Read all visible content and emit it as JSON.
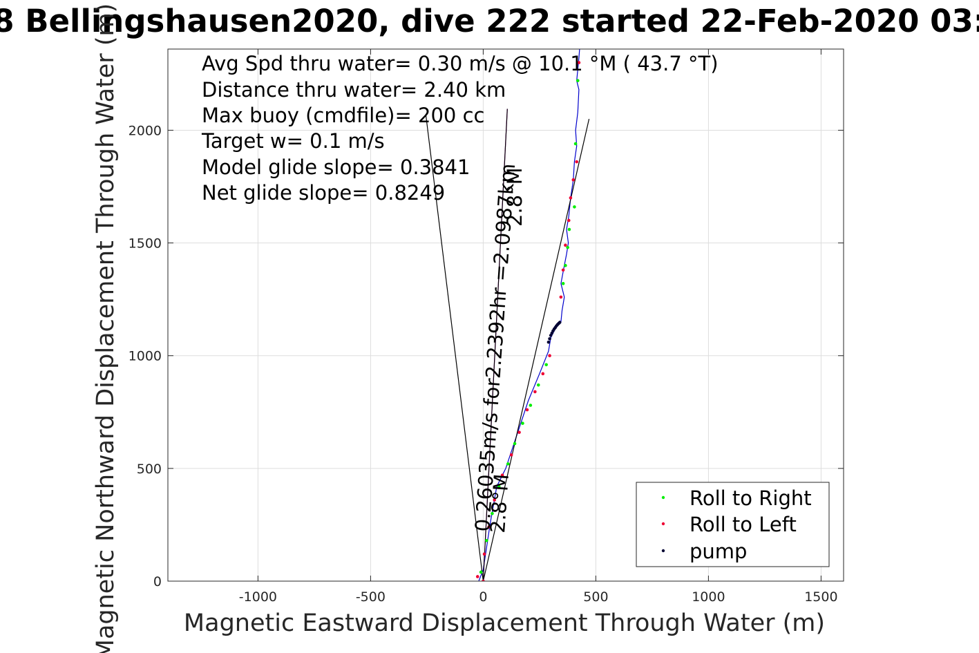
{
  "chart_data": {
    "type": "scatter",
    "title": "8 Bellingshausen2020, dive 222 started 22-Feb-2020 03:",
    "xlabel": "Magnetic Eastward Displacement Through Water (m)",
    "ylabel": "Magnetic Northward Displacement Through Water (m)",
    "xlim": [
      -1400,
      1600
    ],
    "ylim": [
      0,
      2360
    ],
    "xticks": [
      -1000,
      -500,
      0,
      500,
      1000,
      1500
    ],
    "yticks": [
      0,
      500,
      1000,
      1500,
      2000
    ],
    "grid": true,
    "legend_position": "bottom-right",
    "annotations": [
      "Avg Spd thru water=  0.30 m/s @  10.1 °M ( 43.7 °T)",
      "Distance thru water=  2.40 km",
      "Max buoy (cmdfile)= 200 cc",
      "Target w= 0.1 m/s",
      "Model glide slope= 0.3841",
      "Net glide slope= 0.8249"
    ],
    "glide_labels": [
      "0.26035m/s for2.2392hr =2.0987km",
      "2.8°M",
      "2.8°M"
    ],
    "lines": [
      {
        "name": "track",
        "color": "#0000cc",
        "x": [
          -20,
          0,
          30,
          60,
          100,
          150,
          200,
          250,
          290,
          300,
          320,
          345,
          350,
          360,
          345,
          360,
          370,
          378,
          370,
          380,
          388,
          400,
          405,
          415,
          410,
          420,
          425,
          415,
          425,
          428
        ],
        "y": [
          0,
          50,
          250,
          420,
          500,
          650,
          800,
          920,
          1020,
          1080,
          1120,
          1150,
          1200,
          1260,
          1320,
          1400,
          1450,
          1500,
          1560,
          1620,
          1700,
          1780,
          1860,
          1930,
          2000,
          2080,
          2180,
          2220,
          2320,
          2360
        ]
      },
      {
        "name": "net-glide-line",
        "color": "#000000",
        "x": [
          0,
          470
        ],
        "y": [
          0,
          2050
        ]
      },
      {
        "name": "model-glide-line",
        "color": "#cc00cc",
        "x": [
          0,
          107
        ],
        "y": [
          0,
          2095
        ]
      },
      {
        "name": "glide-cone-left",
        "color": "#000000",
        "x": [
          0,
          -255
        ],
        "y": [
          0,
          2070
        ]
      },
      {
        "name": "glide-cone-right",
        "color": "#000000",
        "x": [
          0,
          107
        ],
        "y": [
          0,
          2095
        ]
      }
    ],
    "series": [
      {
        "name": "Roll to Right",
        "color": "#00ee00",
        "x": [
          -10,
          15,
          40,
          70,
          110,
          140,
          175,
          210,
          245,
          280,
          355,
          365,
          375,
          382,
          405,
          410,
          420
        ],
        "y": [
          40,
          180,
          300,
          420,
          520,
          610,
          700,
          780,
          870,
          960,
          1320,
          1400,
          1480,
          1560,
          1660,
          1940,
          2220
        ]
      },
      {
        "name": "Roll to Left",
        "color": "#ee0033",
        "x": [
          -25,
          0,
          5,
          25,
          50,
          85,
          125,
          160,
          195,
          230,
          265,
          295,
          345,
          355,
          365,
          380,
          388,
          400,
          415,
          425
        ],
        "y": [
          20,
          0,
          120,
          240,
          360,
          470,
          560,
          660,
          760,
          840,
          920,
          1000,
          1260,
          1380,
          1490,
          1600,
          1700,
          1780,
          1860,
          2300
        ]
      },
      {
        "name": "pump",
        "color": "#000033",
        "x": [
          290,
          295,
          300,
          305,
          310,
          315,
          320,
          325,
          330,
          335,
          340
        ],
        "y": [
          1060,
          1075,
          1090,
          1100,
          1110,
          1118,
          1125,
          1132,
          1138,
          1143,
          1148
        ]
      }
    ]
  }
}
